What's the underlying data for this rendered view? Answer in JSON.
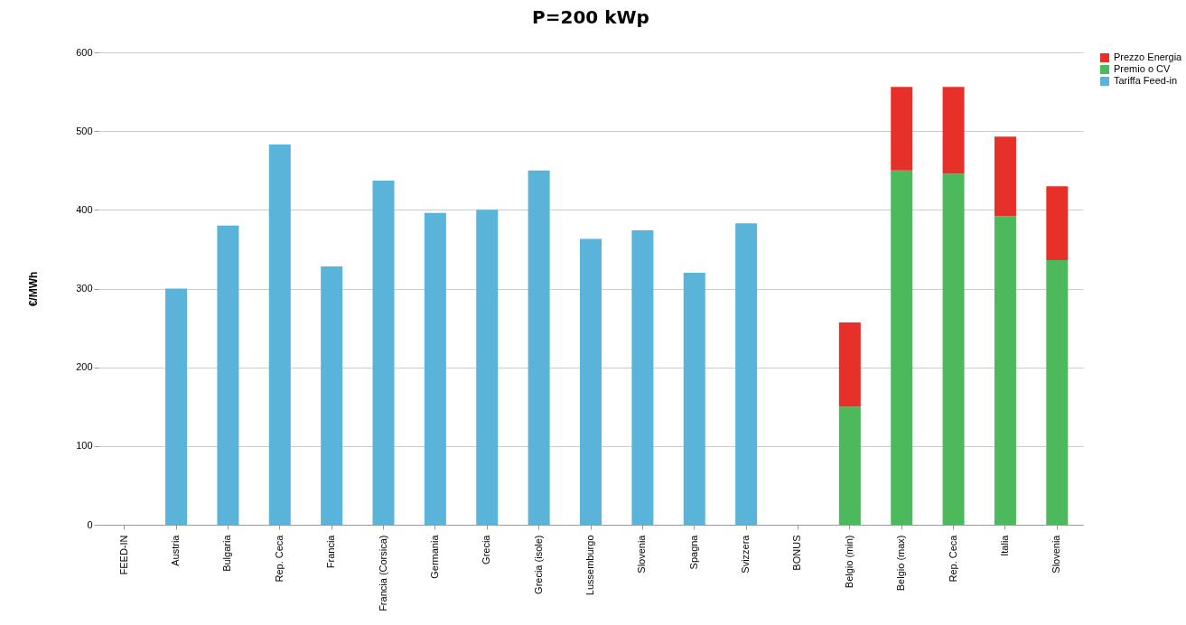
{
  "chart_data": {
    "type": "bar",
    "title": "P=200 kWp",
    "ylabel": "€/MWh",
    "stacked": true,
    "legend": "right",
    "grid": "y",
    "categories": [
      "FEED-IN",
      "Austria",
      "Bulgaria",
      "Rep. Ceca",
      "Francia",
      "Francia (Corsica)",
      "Germania",
      "Grecia",
      "Grecia (isole)",
      "Lussemburgo",
      "Slovenia",
      "Spagna",
      "Svizzera",
      "BONUS",
      "Belgio (min)",
      "Belgio (max)",
      "Rep. Ceca",
      "Italia",
      "Slovenia"
    ],
    "ylim": [
      0,
      600
    ],
    "yticks": [
      0,
      100,
      200,
      300,
      400,
      500,
      600
    ],
    "series": [
      {
        "name": "Tariffa Feed-in",
        "color": "#5ab4da",
        "values": [
          null,
          300,
          380,
          483,
          328,
          437,
          396,
          400,
          450,
          363,
          374,
          320,
          383,
          null,
          null,
          null,
          null,
          null,
          null
        ]
      },
      {
        "name": "Premio o CV",
        "color": "#4cba5c",
        "values": [
          null,
          null,
          null,
          null,
          null,
          null,
          null,
          null,
          null,
          null,
          null,
          null,
          null,
          null,
          150,
          450,
          446,
          392,
          336
        ]
      },
      {
        "name": "Prezzo Energia",
        "color": "#e8302a",
        "values": [
          null,
          null,
          null,
          null,
          null,
          null,
          null,
          null,
          null,
          null,
          null,
          null,
          null,
          null,
          107,
          106,
          110,
          101,
          94
        ]
      }
    ]
  }
}
